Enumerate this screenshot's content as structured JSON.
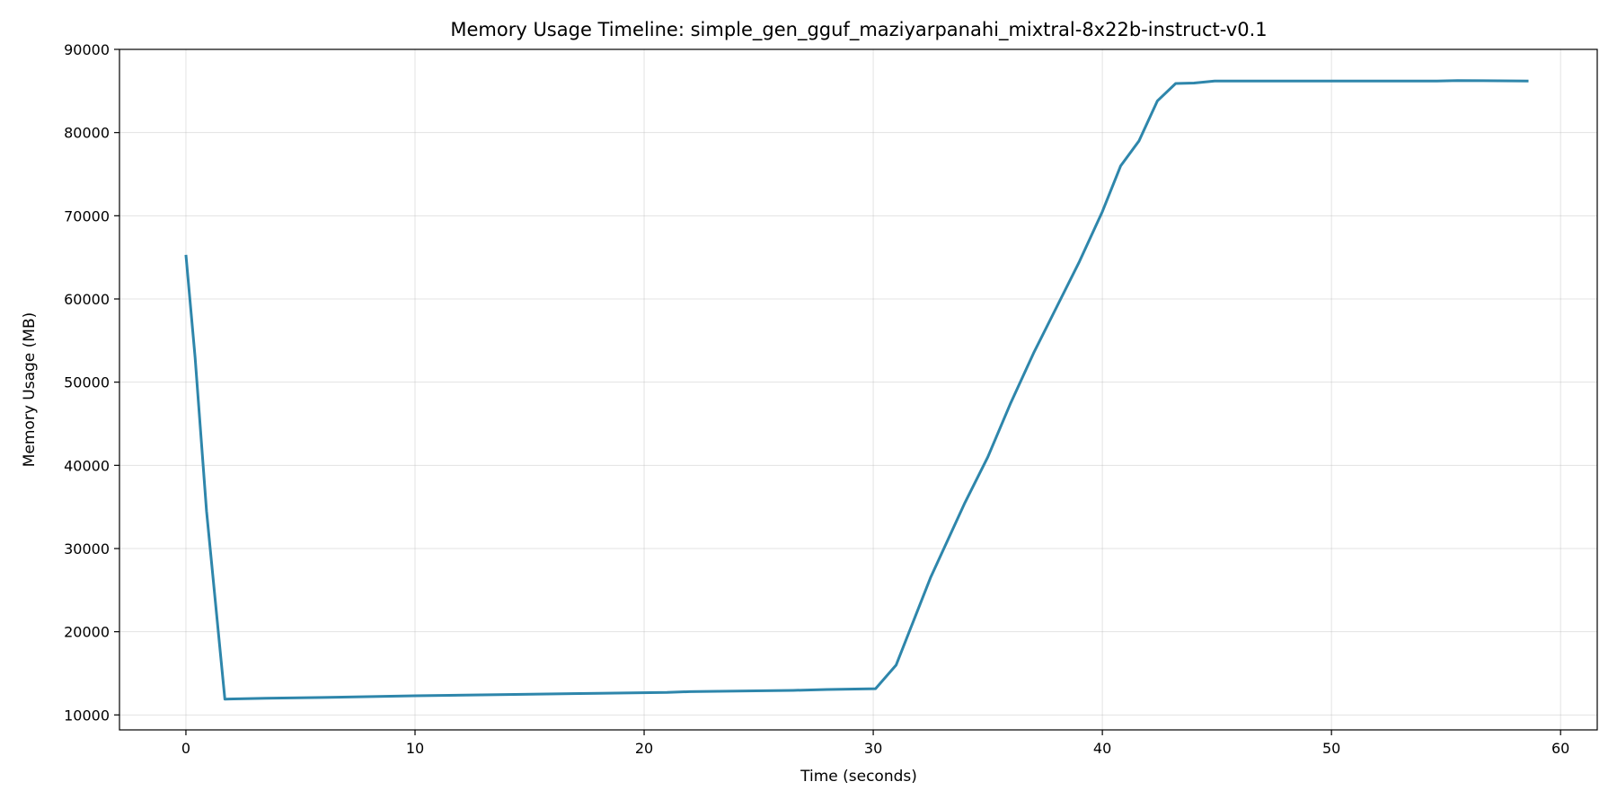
{
  "chart_data": {
    "type": "line",
    "title": "Memory Usage Timeline: simple_gen_gguf_maziyarpanahi_mixtral-8x22b-instruct-v0.1",
    "xlabel": "Time (seconds)",
    "ylabel": "Memory Usage (MB)",
    "xlim": [
      -2.9,
      61.6
    ],
    "ylim": [
      8200,
      90000
    ],
    "xticks": [
      0,
      10,
      20,
      30,
      40,
      50,
      60
    ],
    "yticks": [
      10000,
      20000,
      30000,
      40000,
      50000,
      60000,
      70000,
      80000,
      90000
    ],
    "grid": true,
    "legend": "none",
    "series": [
      {
        "color": "#2e86ab",
        "x": [
          0,
          0.4,
          0.9,
          1.7,
          3.5,
          6,
          10,
          14,
          18,
          21,
          22,
          26.5,
          28,
          30.1,
          31,
          32.5,
          34,
          35,
          36,
          37,
          38,
          39,
          40,
          40.8,
          41.6,
          42.4,
          43.2,
          44,
          44.9,
          47,
          50,
          53,
          54.6,
          55.5,
          58.6
        ],
        "y": [
          65300,
          53000,
          34500,
          11900,
          12000,
          12100,
          12300,
          12450,
          12600,
          12700,
          12800,
          12950,
          13050,
          13150,
          16000,
          26500,
          35500,
          41000,
          47500,
          53500,
          59000,
          64500,
          70500,
          76000,
          79000,
          83800,
          85900,
          85950,
          86200,
          86200,
          86200,
          86200,
          86200,
          86250,
          86200
        ]
      }
    ]
  }
}
